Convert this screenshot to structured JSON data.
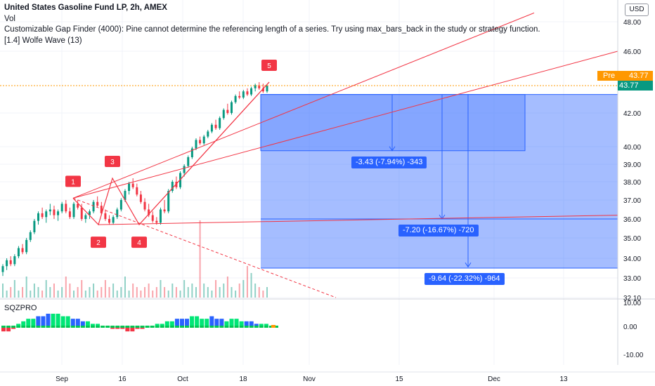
{
  "legend": {
    "title": "United States Gasoline Fund LP, 2h, AMEX",
    "line2": "Vol",
    "line3": "Customizable Gap Finder (4000): Pine cannot determine the referencing length of a series. Try using max_bars_back in the study or strategy function.",
    "line4": "[1.4] Wolfe Wave (13)"
  },
  "indicator_label": "SQZPRO",
  "currency": "USD",
  "price_tags": {
    "pre_label": "Pre",
    "pre_value": "43.77",
    "last_value": "43.77"
  },
  "measure_labels": [
    "-3.43 (-7.94%) -343",
    "-7.20 (-16.67%) -720",
    "-9.64 (-22.32%) -964"
  ],
  "colors": {
    "up": "#089981",
    "down": "#f23645",
    "wolfe": "#f23645",
    "measure": "#2962ff",
    "pre": "#ff9800"
  },
  "chart_data": {
    "type": "candlestick",
    "symbol": "United States Gasoline Fund LP, 2h, AMEX",
    "x_ticks": [
      "Sep",
      "16",
      "Oct",
      "18",
      "Nov",
      "15",
      "Dec",
      "13"
    ],
    "y_ticks": [
      "48.00",
      "46.00",
      "42.00",
      "40.00",
      "39.00",
      "38.00",
      "37.00",
      "36.00",
      "35.00",
      "34.00",
      "33.00",
      "32.10"
    ],
    "y_ticks_indicator": [
      "10.00",
      "0.00",
      "-10.00"
    ],
    "last_price": 43.77,
    "wolfe_wave_points": [
      {
        "label": "1",
        "price": 37.1
      },
      {
        "label": "2",
        "price": 35.7
      },
      {
        "label": "3",
        "price": 38.2
      },
      {
        "label": "4",
        "price": 35.7
      },
      {
        "label": "5",
        "price": 44.0
      }
    ],
    "measure_top_price": 43.2,
    "measure_targets": [
      {
        "change": -3.43,
        "percent": -7.94,
        "ticks": -343
      },
      {
        "change": -7.2,
        "percent": -16.67,
        "ticks": -720
      },
      {
        "change": -9.64,
        "percent": -22.32,
        "ticks": -964
      }
    ],
    "candles": [
      {
        "o": 33.3,
        "h": 33.7,
        "l": 33.1,
        "c": 33.6
      },
      {
        "o": 33.6,
        "h": 34.0,
        "l": 33.4,
        "c": 33.9
      },
      {
        "o": 33.9,
        "h": 34.1,
        "l": 33.6,
        "c": 33.7
      },
      {
        "o": 33.7,
        "h": 34.2,
        "l": 33.6,
        "c": 34.1
      },
      {
        "o": 34.1,
        "h": 34.6,
        "l": 34.0,
        "c": 34.5
      },
      {
        "o": 34.5,
        "h": 34.7,
        "l": 34.2,
        "c": 34.3
      },
      {
        "o": 34.3,
        "h": 35.0,
        "l": 34.2,
        "c": 34.9
      },
      {
        "o": 34.9,
        "h": 35.4,
        "l": 34.8,
        "c": 35.3
      },
      {
        "o": 35.3,
        "h": 36.0,
        "l": 35.2,
        "c": 35.9
      },
      {
        "o": 35.9,
        "h": 36.4,
        "l": 35.7,
        "c": 36.3
      },
      {
        "o": 36.3,
        "h": 36.6,
        "l": 36.0,
        "c": 36.1
      },
      {
        "o": 36.1,
        "h": 36.5,
        "l": 35.8,
        "c": 36.4
      },
      {
        "o": 36.4,
        "h": 36.8,
        "l": 36.2,
        "c": 36.5
      },
      {
        "o": 36.5,
        "h": 36.7,
        "l": 36.0,
        "c": 36.2
      },
      {
        "o": 36.2,
        "h": 36.5,
        "l": 35.9,
        "c": 36.4
      },
      {
        "o": 36.4,
        "h": 36.9,
        "l": 36.3,
        "c": 36.8
      },
      {
        "o": 36.8,
        "h": 37.0,
        "l": 36.3,
        "c": 36.4
      },
      {
        "o": 36.4,
        "h": 36.6,
        "l": 36.0,
        "c": 36.1
      },
      {
        "o": 36.1,
        "h": 36.9,
        "l": 36.0,
        "c": 36.8
      },
      {
        "o": 36.8,
        "h": 37.0,
        "l": 36.5,
        "c": 36.6
      },
      {
        "o": 36.6,
        "h": 36.8,
        "l": 35.9,
        "c": 36.0
      },
      {
        "o": 36.0,
        "h": 36.3,
        "l": 35.8,
        "c": 36.2
      },
      {
        "o": 36.2,
        "h": 36.5,
        "l": 36.0,
        "c": 36.4
      },
      {
        "o": 36.4,
        "h": 37.0,
        "l": 36.3,
        "c": 36.9
      },
      {
        "o": 36.9,
        "h": 37.2,
        "l": 36.6,
        "c": 36.7
      },
      {
        "o": 36.7,
        "h": 36.9,
        "l": 36.2,
        "c": 36.3
      },
      {
        "o": 36.3,
        "h": 36.5,
        "l": 35.9,
        "c": 36.0
      },
      {
        "o": 36.0,
        "h": 36.2,
        "l": 35.7,
        "c": 35.8
      },
      {
        "o": 35.8,
        "h": 36.2,
        "l": 35.7,
        "c": 36.1
      },
      {
        "o": 36.1,
        "h": 36.6,
        "l": 36.0,
        "c": 36.5
      },
      {
        "o": 36.5,
        "h": 37.1,
        "l": 36.4,
        "c": 37.0
      },
      {
        "o": 37.0,
        "h": 37.6,
        "l": 36.9,
        "c": 37.5
      },
      {
        "o": 37.5,
        "h": 38.0,
        "l": 37.3,
        "c": 37.9
      },
      {
        "o": 37.9,
        "h": 38.2,
        "l": 37.6,
        "c": 37.7
      },
      {
        "o": 37.7,
        "h": 37.9,
        "l": 37.2,
        "c": 37.3
      },
      {
        "o": 37.3,
        "h": 37.5,
        "l": 36.8,
        "c": 36.9
      },
      {
        "o": 36.9,
        "h": 37.1,
        "l": 36.4,
        "c": 36.5
      },
      {
        "o": 36.5,
        "h": 36.8,
        "l": 36.1,
        "c": 36.2
      },
      {
        "o": 36.2,
        "h": 36.4,
        "l": 35.8,
        "c": 35.9
      },
      {
        "o": 35.9,
        "h": 36.1,
        "l": 35.7,
        "c": 35.8
      },
      {
        "o": 35.8,
        "h": 36.6,
        "l": 35.7,
        "c": 36.5
      },
      {
        "o": 36.5,
        "h": 37.0,
        "l": 36.3,
        "c": 36.4
      },
      {
        "o": 36.4,
        "h": 37.6,
        "l": 36.3,
        "c": 37.5
      },
      {
        "o": 37.5,
        "h": 38.1,
        "l": 37.4,
        "c": 38.0
      },
      {
        "o": 38.0,
        "h": 38.3,
        "l": 37.6,
        "c": 37.7
      },
      {
        "o": 37.7,
        "h": 38.6,
        "l": 37.6,
        "c": 38.5
      },
      {
        "o": 38.5,
        "h": 39.0,
        "l": 38.3,
        "c": 38.9
      },
      {
        "o": 38.9,
        "h": 39.5,
        "l": 38.8,
        "c": 39.4
      },
      {
        "o": 39.4,
        "h": 40.0,
        "l": 39.3,
        "c": 39.9
      },
      {
        "o": 39.9,
        "h": 40.5,
        "l": 39.8,
        "c": 40.4
      },
      {
        "o": 40.4,
        "h": 40.6,
        "l": 40.1,
        "c": 40.2
      },
      {
        "o": 40.2,
        "h": 40.7,
        "l": 40.1,
        "c": 40.6
      },
      {
        "o": 40.6,
        "h": 41.0,
        "l": 40.5,
        "c": 40.9
      },
      {
        "o": 40.9,
        "h": 41.4,
        "l": 40.8,
        "c": 41.3
      },
      {
        "o": 41.3,
        "h": 41.6,
        "l": 41.0,
        "c": 41.1
      },
      {
        "o": 41.1,
        "h": 41.8,
        "l": 41.0,
        "c": 41.7
      },
      {
        "o": 41.7,
        "h": 42.3,
        "l": 41.6,
        "c": 42.2
      },
      {
        "o": 42.2,
        "h": 42.6,
        "l": 41.9,
        "c": 42.0
      },
      {
        "o": 42.0,
        "h": 42.8,
        "l": 41.9,
        "c": 42.7
      },
      {
        "o": 42.7,
        "h": 43.2,
        "l": 42.6,
        "c": 43.1
      },
      {
        "o": 43.1,
        "h": 43.4,
        "l": 42.9,
        "c": 43.0
      },
      {
        "o": 43.0,
        "h": 43.5,
        "l": 42.9,
        "c": 43.4
      },
      {
        "o": 43.4,
        "h": 43.6,
        "l": 43.1,
        "c": 43.2
      },
      {
        "o": 43.2,
        "h": 43.7,
        "l": 43.1,
        "c": 43.6
      },
      {
        "o": 43.6,
        "h": 43.9,
        "l": 43.4,
        "c": 43.8
      },
      {
        "o": 43.8,
        "h": 44.0,
        "l": 43.5,
        "c": 43.6
      },
      {
        "o": 43.6,
        "h": 43.9,
        "l": 43.3,
        "c": 43.4
      },
      {
        "o": 43.4,
        "h": 43.8,
        "l": 43.3,
        "c": 43.77
      }
    ],
    "volume": [
      4,
      2,
      3,
      5,
      2,
      3,
      6,
      2,
      4,
      3,
      2,
      5,
      3,
      4,
      2,
      3,
      6,
      4,
      2,
      3,
      5,
      2,
      3,
      4,
      2,
      3,
      5,
      3,
      4,
      2,
      3,
      6,
      2,
      4,
      3,
      2,
      3,
      4,
      2,
      3,
      5,
      3,
      2,
      4,
      3,
      2,
      5,
      3,
      4,
      3,
      22,
      4,
      3,
      2,
      5,
      3,
      4,
      6,
      3,
      2,
      4,
      5,
      9,
      7,
      4,
      3,
      2,
      3
    ],
    "sqzpro_histogram": [
      -2,
      -2,
      -1,
      1,
      2,
      3,
      3,
      4,
      4,
      5,
      5,
      5,
      4,
      4,
      3,
      3,
      2,
      2,
      1,
      1,
      0,
      0,
      -1,
      -1,
      -1,
      -2,
      -2,
      -1,
      -1,
      0,
      0,
      1,
      1,
      2,
      2,
      3,
      3,
      3,
      4,
      4,
      3,
      3,
      4,
      3,
      3,
      2,
      3,
      3,
      2,
      2,
      2,
      1,
      1,
      1,
      0,
      0
    ]
  }
}
